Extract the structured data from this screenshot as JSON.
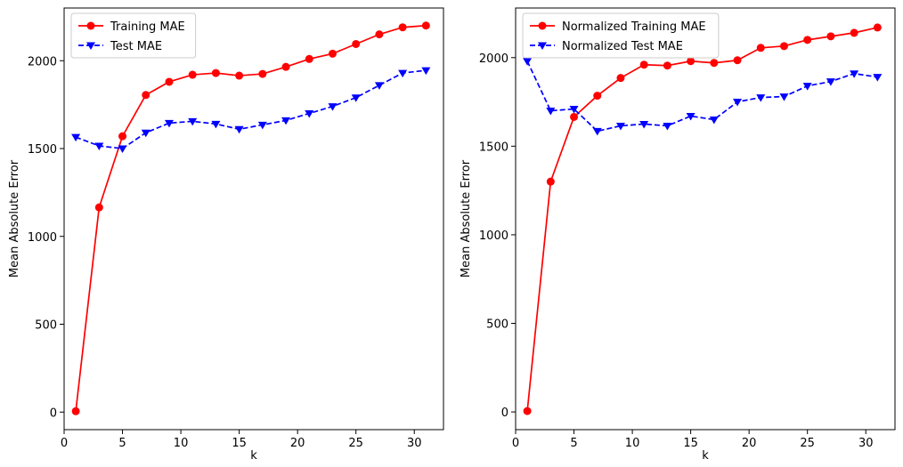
{
  "chart_data": [
    {
      "type": "line",
      "xlabel": "k",
      "ylabel": "Mean Absolute Error",
      "xlim": [
        0,
        32.5
      ],
      "ylim": [
        -100,
        2300
      ],
      "xticks": [
        0,
        5,
        10,
        15,
        20,
        25,
        30
      ],
      "yticks": [
        0,
        500,
        1000,
        1500,
        2000
      ],
      "legend_position": "top-left",
      "grid": false,
      "x": [
        1,
        3,
        5,
        7,
        9,
        11,
        13,
        15,
        17,
        19,
        21,
        23,
        25,
        27,
        29,
        31
      ],
      "series": [
        {
          "name": "Training MAE",
          "color": "#ff0000",
          "style": "solid",
          "marker": "circle",
          "values": [
            5,
            1165,
            1570,
            1805,
            1880,
            1920,
            1930,
            1915,
            1925,
            1965,
            2010,
            2040,
            2095,
            2150,
            2190,
            2200
          ]
        },
        {
          "name": "Test MAE",
          "color": "#0000ff",
          "style": "dashed",
          "marker": "triangle-down",
          "values": [
            1565,
            1515,
            1500,
            1590,
            1645,
            1655,
            1640,
            1610,
            1635,
            1660,
            1700,
            1740,
            1790,
            1860,
            1930,
            1945
          ]
        }
      ]
    },
    {
      "type": "line",
      "xlabel": "k",
      "ylabel": "Mean Absolute Error",
      "xlim": [
        0,
        32.5
      ],
      "ylim": [
        -100,
        2280
      ],
      "xticks": [
        0,
        5,
        10,
        15,
        20,
        25,
        30
      ],
      "yticks": [
        0,
        500,
        1000,
        1500,
        2000
      ],
      "legend_position": "top-left",
      "grid": false,
      "x": [
        1,
        3,
        5,
        7,
        9,
        11,
        13,
        15,
        17,
        19,
        21,
        23,
        25,
        27,
        29,
        31
      ],
      "series": [
        {
          "name": "Normalized Training MAE",
          "color": "#ff0000",
          "style": "solid",
          "marker": "circle",
          "values": [
            5,
            1300,
            1665,
            1785,
            1885,
            1960,
            1955,
            1980,
            1970,
            1985,
            2055,
            2065,
            2100,
            2120,
            2140,
            2170
          ]
        },
        {
          "name": "Normalized Test MAE",
          "color": "#0000ff",
          "style": "dashed",
          "marker": "triangle-down",
          "values": [
            1980,
            1700,
            1710,
            1585,
            1615,
            1625,
            1615,
            1670,
            1650,
            1750,
            1775,
            1780,
            1840,
            1865,
            1910,
            1890
          ]
        }
      ]
    }
  ]
}
